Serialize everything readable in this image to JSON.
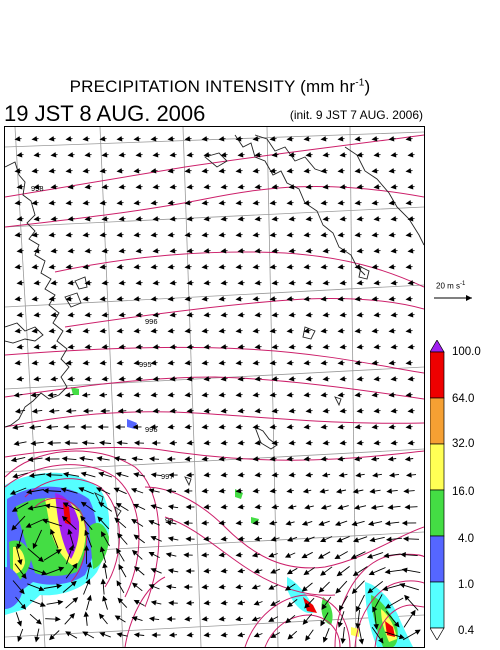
{
  "header": {
    "title_main": "PRECIPITATION INTENSITY (mm hr",
    "title_sup": "-1",
    "title_end": ")",
    "valid_time": "19 JST 8 AUG. 2006",
    "init_time": "(init. 9 JST 7 AUG. 2006)"
  },
  "map": {
    "isobar_labels": [
      "998",
      "996",
      "995",
      "996",
      "997",
      "99"
    ],
    "colors": {
      "isobar": "#cc1f6a",
      "coast": "#222222",
      "grid": "#9a9a9a",
      "arrow": "#000000"
    }
  },
  "reference_vector": {
    "label_value": "20 m s",
    "label_sup": "-1"
  },
  "colorbar": {
    "labels": [
      "100.0",
      "64.0",
      "32.0",
      "16.0",
      "4.0",
      "1.0",
      "0.4"
    ],
    "colors": [
      "#a020f0",
      "#ee0000",
      "#f5a033",
      "#ffff55",
      "#44dd44",
      "#5566ff",
      "#55ffff",
      "#ffffff"
    ]
  }
}
